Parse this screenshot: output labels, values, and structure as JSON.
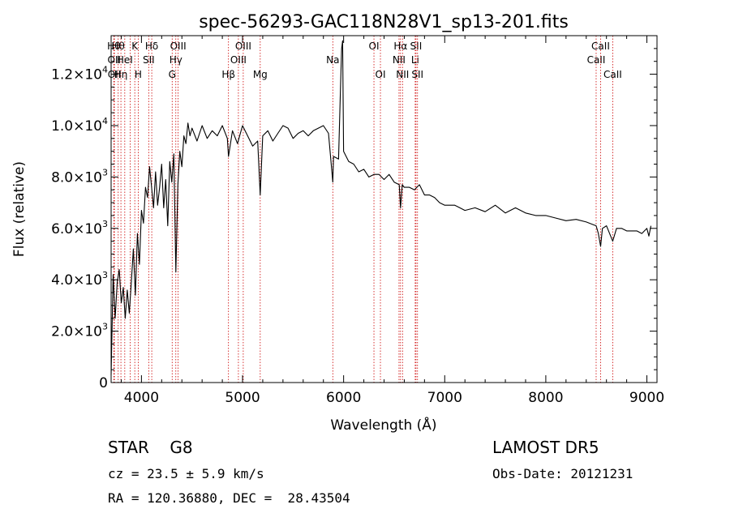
{
  "chart_data": {
    "type": "line",
    "title": "spec-56293-GAC118N28V1_sp13-201.fits",
    "xlabel": "Wavelength (Å)",
    "ylabel": "Flux (relative)",
    "xlim": [
      3700,
      9100
    ],
    "ylim": [
      0,
      13500
    ],
    "x_ticks": [
      4000,
      5000,
      6000,
      7000,
      8000,
      9000
    ],
    "x_tick_labels": [
      "4000",
      "5000",
      "6000",
      "7000",
      "8000",
      "9000"
    ],
    "y_ticks": [
      0,
      2000,
      4000,
      6000,
      8000,
      10000,
      12000
    ],
    "y_tick_labels": [
      {
        "mant": "0",
        "exp": ""
      },
      {
        "mant": "2.0×10",
        "exp": "3"
      },
      {
        "mant": "4.0×10",
        "exp": "3"
      },
      {
        "mant": "6.0×10",
        "exp": "3"
      },
      {
        "mant": "8.0×10",
        "exp": "3"
      },
      {
        "mant": "1.0×10",
        "exp": "4"
      },
      {
        "mant": "1.2×10",
        "exp": "4"
      }
    ],
    "series": [
      {
        "x": [
          3700,
          3720,
          3740,
          3760,
          3780,
          3800,
          3820,
          3840,
          3860,
          3880,
          3900,
          3920,
          3940,
          3960,
          3980,
          4000,
          4020,
          4040,
          4060,
          4080,
          4100,
          4120,
          4140,
          4160,
          4180,
          4200,
          4220,
          4240,
          4260,
          4280,
          4300,
          4320,
          4340,
          4360,
          4380,
          4400,
          4420,
          4440,
          4460,
          4480,
          4500,
          4550,
          4600,
          4650,
          4700,
          4750,
          4800,
          4850,
          4861,
          4900,
          4950,
          5000,
          5050,
          5100,
          5150,
          5175,
          5200,
          5250,
          5300,
          5350,
          5400,
          5450,
          5500,
          5550,
          5600,
          5650,
          5700,
          5750,
          5800,
          5850,
          5893,
          5900,
          5950,
          5970,
          5980,
          5990,
          6000,
          6050,
          6100,
          6150,
          6200,
          6250,
          6300,
          6350,
          6400,
          6450,
          6500,
          6550,
          6563,
          6580,
          6600,
          6650,
          6700,
          6750,
          6800,
          6850,
          6900,
          6950,
          7000,
          7100,
          7200,
          7300,
          7400,
          7500,
          7600,
          7700,
          7800,
          7900,
          8000,
          8100,
          8200,
          8300,
          8400,
          8498,
          8520,
          8542,
          8560,
          8600,
          8662,
          8700,
          8750,
          8800,
          8850,
          8900,
          8950,
          9000,
          9020,
          9040
        ],
        "y": [
          300,
          4200,
          2500,
          3900,
          4400,
          3100,
          3700,
          2500,
          3600,
          2700,
          3900,
          5200,
          3400,
          5800,
          4600,
          6700,
          6200,
          7600,
          7200,
          8400,
          7600,
          6800,
          8200,
          6900,
          7600,
          8500,
          6800,
          7900,
          6100,
          8600,
          7800,
          8900,
          4300,
          7700,
          9000,
          8400,
          9600,
          9300,
          10100,
          9600,
          9900,
          9400,
          10000,
          9500,
          9800,
          9600,
          10000,
          9500,
          8800,
          9800,
          9300,
          10000,
          9600,
          9200,
          9400,
          7300,
          9600,
          9800,
          9400,
          9700,
          10000,
          9900,
          9500,
          9700,
          9800,
          9600,
          9800,
          9900,
          10000,
          9700,
          7800,
          8800,
          8700,
          11600,
          13000,
          13300,
          9000,
          8600,
          8500,
          8200,
          8300,
          8000,
          8100,
          8100,
          7900,
          8100,
          7800,
          7700,
          6800,
          7700,
          7600,
          7600,
          7500,
          7700,
          7300,
          7300,
          7200,
          7000,
          6900,
          6900,
          6700,
          6800,
          6650,
          6900,
          6600,
          6800,
          6600,
          6500,
          6500,
          6400,
          6300,
          6350,
          6250,
          6100,
          5800,
          5300,
          6000,
          6100,
          5500,
          6000,
          6000,
          5900,
          5900,
          5900,
          5800,
          6000,
          5700,
          6100
        ]
      }
    ],
    "line_markers": [
      {
        "w": 3727,
        "row": 0,
        "label": "Hθ"
      },
      {
        "w": 3730,
        "row": 1,
        "label": "OII"
      },
      {
        "w": 3732,
        "row": 2,
        "label": "OII"
      },
      {
        "w": 3770,
        "row": 0,
        "label": "Hθ"
      },
      {
        "w": 3797,
        "row": 2,
        "label": "Hη"
      },
      {
        "w": 3835,
        "row": 1,
        "label": "HeI"
      },
      {
        "w": 3889,
        "row": 1,
        "label": ""
      },
      {
        "w": 3934,
        "row": 0,
        "label": "K"
      },
      {
        "w": 3968,
        "row": 2,
        "label": "H"
      },
      {
        "w": 4072,
        "row": 1,
        "label": "SII"
      },
      {
        "w": 4102,
        "row": 0,
        "label": "Hδ"
      },
      {
        "w": 4304,
        "row": 2,
        "label": "G"
      },
      {
        "w": 4340,
        "row": 1,
        "label": "Hγ"
      },
      {
        "w": 4363,
        "row": 0,
        "label": "OIII"
      },
      {
        "w": 4861,
        "row": 2,
        "label": "Hβ"
      },
      {
        "w": 4959,
        "row": 1,
        "label": "OIII"
      },
      {
        "w": 5007,
        "row": 0,
        "label": "OIII"
      },
      {
        "w": 5175,
        "row": 2,
        "label": "Mg"
      },
      {
        "w": 5893,
        "row": 1,
        "label": "Na"
      },
      {
        "w": 6300,
        "row": 0,
        "label": "OI"
      },
      {
        "w": 6364,
        "row": 2,
        "label": "OI"
      },
      {
        "w": 6548,
        "row": 1,
        "label": "NII"
      },
      {
        "w": 6563,
        "row": 0,
        "label": "Hα"
      },
      {
        "w": 6583,
        "row": 2,
        "label": "NII"
      },
      {
        "w": 6708,
        "row": 1,
        "label": "Li"
      },
      {
        "w": 6716,
        "row": 0,
        "label": "SII"
      },
      {
        "w": 6731,
        "row": 2,
        "label": "SII"
      },
      {
        "w": 8498,
        "row": 1,
        "label": "CaII"
      },
      {
        "w": 8542,
        "row": 0,
        "label": "CaII"
      },
      {
        "w": 8662,
        "row": 2,
        "label": "CaII"
      }
    ]
  },
  "info": {
    "class_text": "STAR    G8",
    "survey": "LAMOST DR5",
    "cz_text": "cz = 23.5 ± 5.9 km/s",
    "obs_date": "Obs-Date: 20121231",
    "radec_text": "RA = 120.36880, DEC =  28.43504"
  }
}
